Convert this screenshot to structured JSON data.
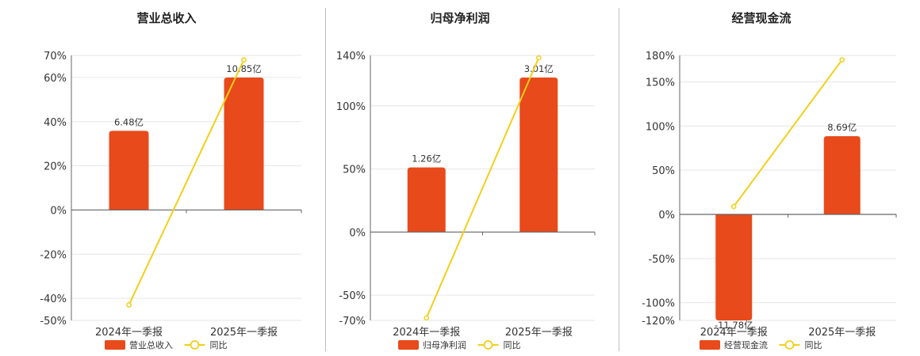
{
  "colors": {
    "bar": "#e84a1b",
    "line": "#f2cf1a",
    "grid": "#e6e6e6",
    "axis": "#666666"
  },
  "chart_data": [
    {
      "type": "bar",
      "title": "营业总收入",
      "categories": [
        "2024年一季报",
        "2025年一季报"
      ],
      "series": [
        {
          "name": "营业总收入",
          "type": "bar",
          "values": [
            6.48,
            10.85
          ],
          "labels": [
            "6.48亿",
            "10.85亿"
          ]
        },
        {
          "name": "同比",
          "type": "line",
          "values": [
            -43,
            68
          ]
        }
      ],
      "yticks": [
        "70%",
        "60%",
        "40%",
        "20%",
        "0%",
        "-20%",
        "-40%",
        "-50%"
      ],
      "ylim": [
        -50,
        70
      ],
      "grid": true,
      "legend": "bottom"
    },
    {
      "type": "bar",
      "title": "归母净利润",
      "categories": [
        "2024年一季报",
        "2025年一季报"
      ],
      "series": [
        {
          "name": "归母净利润",
          "type": "bar",
          "values": [
            1.26,
            3.01
          ],
          "labels": [
            "1.26亿",
            "3.01亿"
          ]
        },
        {
          "name": "同比",
          "type": "line",
          "values": [
            -68,
            138
          ]
        }
      ],
      "yticks": [
        "140%",
        "100%",
        "50%",
        "0%",
        "-50%",
        "-70%"
      ],
      "ylim": [
        -70,
        140
      ],
      "grid": true,
      "legend": "bottom"
    },
    {
      "type": "bar",
      "title": "经营现金流",
      "categories": [
        "2024年一季报",
        "2025年一季报"
      ],
      "series": [
        {
          "name": "经营现金流",
          "type": "bar",
          "values": [
            -11.78,
            8.69
          ],
          "labels": [
            "-11.78亿",
            "8.69亿"
          ]
        },
        {
          "name": "同比",
          "type": "line",
          "values": [
            9,
            175
          ]
        }
      ],
      "yticks": [
        "180%",
        "150%",
        "100%",
        "50%",
        "0%",
        "-50%",
        "-100%",
        "-120%"
      ],
      "ylim": [
        -120,
        180
      ],
      "grid": true,
      "legend": "bottom"
    }
  ]
}
